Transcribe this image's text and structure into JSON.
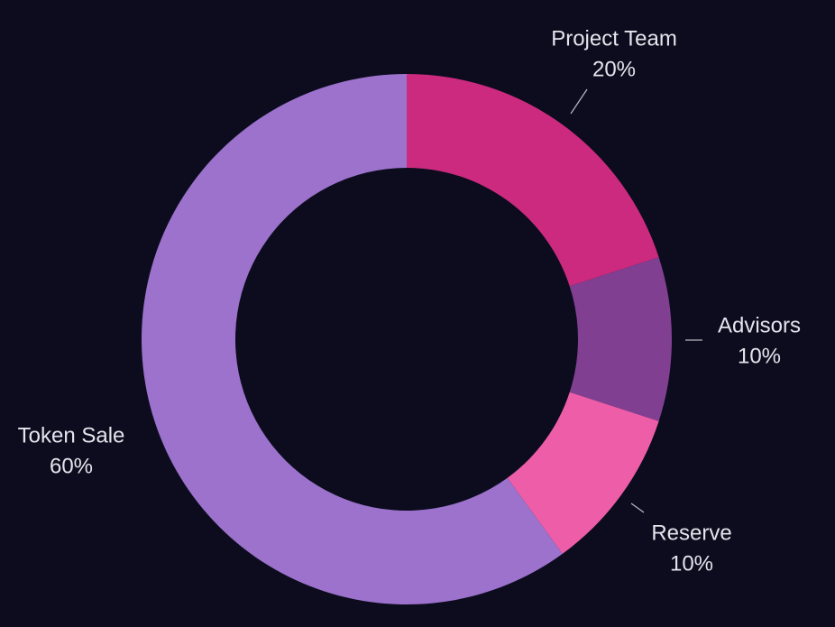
{
  "chart_data": {
    "type": "pie",
    "donut": true,
    "slices": [
      {
        "label": "Project Team",
        "value": 20,
        "value_label": "20%",
        "color": "#cc2a7e"
      },
      {
        "label": "Advisors",
        "value": 10,
        "value_label": "10%",
        "color": "#813f92"
      },
      {
        "label": "Reserve",
        "value": 10,
        "value_label": "10%",
        "color": "#ee5ea8"
      },
      {
        "label": "Token Sale",
        "value": 60,
        "value_label": "60%",
        "color": "#9c72cc"
      }
    ],
    "start_angle": "12 o'clock",
    "direction": "clockwise",
    "legend": "none",
    "background": "#0c0c1e"
  }
}
